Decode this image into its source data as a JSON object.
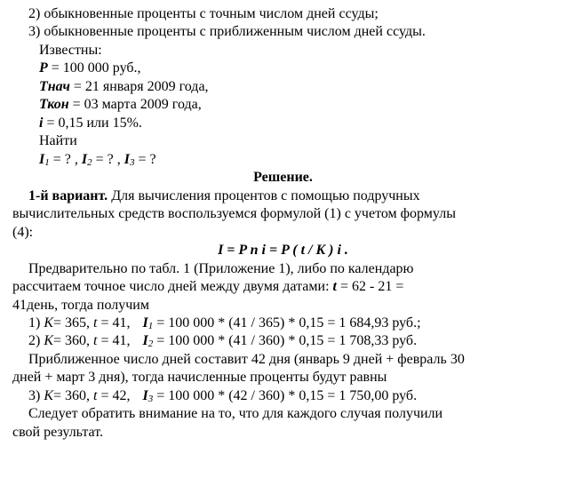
{
  "lines": {
    "l2": "2) обыкновенные проценты с точным числом дней ссуды;",
    "l3": "3) обыкновенные проценты с приближенным числом дней ссуды.",
    "known": "Известны:",
    "p_var": "P",
    "p_val": " = 100 000 руб.,",
    "tn_var": "Тнач",
    "tn_val": " = 21 января 2009 года,",
    "tk_var": "Ткон",
    "tk_val": " = 03 марта 2009 года,",
    "i_var": "i",
    "i_val": " = 0,15 или 15%.",
    "find": "Найти",
    "I1": "I",
    "s1": "1",
    "I2": "I",
    "s2": "2",
    "I3": "I",
    "s3": "3",
    "eqq1": "  = ? , ",
    "eqq2": "  = ? , ",
    "eqq3": "  = ?",
    "solution": "Решение.",
    "v1a": "1-й  вариант.",
    "v1b": "  Для  вычисления  процентов  с  помощью  подручных",
    "v1c": "вычислительных средств воспользуемся формулой (1)  с учетом формулы",
    "v1d": "(4):",
    "formula": "I = P n i = P ( t / K ) i .",
    "p2a": "Предварительно по табл. 1 (Приложение 1), либо по календарю",
    "p2b1": "рассчитаем точное число дней между двумя датами:  ",
    "p2b_t": "t",
    "p2b2": " = 62 - 21 =",
    "p2c": "41день, тогда получим",
    "r1a": "1) ",
    "r1K": "К",
    "r1b": "= 365, ",
    "r1t": "t",
    "r1c": " = 41,",
    "r1I": "I",
    "r1s": "1",
    "r1d": " = 100 000 * (41 / 365) * 0,15 = 1 684,93 руб.;",
    "r2a": "2) ",
    "r2b": "= 360, ",
    "r2c": " = 41,",
    "r2s": "2",
    "r2d": " = 100 000 * (41 / 360) * 0,15 = 1 708,33 руб.",
    "p3a": "Приближенное число дней составит 42 дня (январь 9 дней + февраль 30",
    "p3b": "дней + март 3 дня), тогда начисленные проценты будут равны",
    "r3a": "3) ",
    "r3b": "= 360, ",
    "r3c": " = 42,",
    "r3s": "3",
    "r3d": " = 100 000 * (42 / 360) * 0,15 = 1 750,00 руб.",
    "p4a": "Следует обратить внимание на то, что для каждого случая получили",
    "p4b": "свой результат."
  }
}
